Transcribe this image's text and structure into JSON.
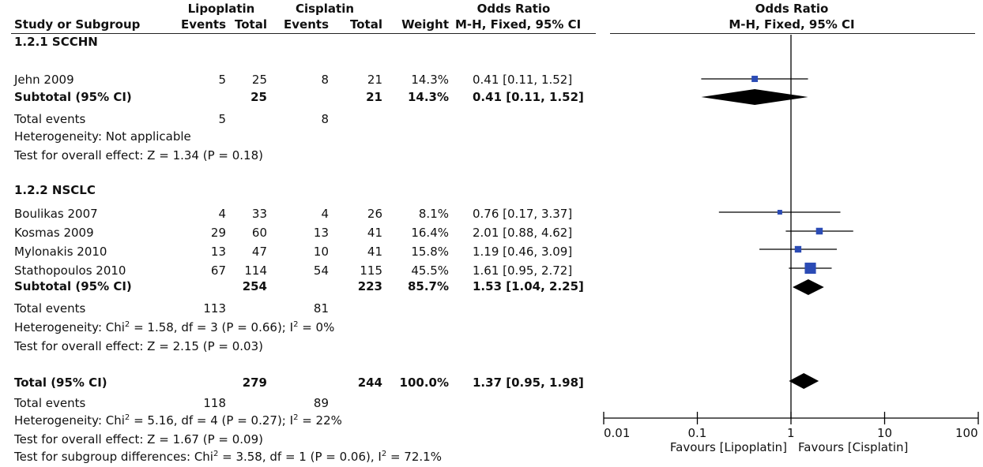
{
  "header": {
    "group1": "Lipoplatin",
    "group2": "Cisplatin",
    "or_title": "Odds Ratio",
    "study_label": "Study or Subgroup",
    "events": "Events",
    "total": "Total",
    "weight": "Weight",
    "method": "M-H, Fixed, 95% CI",
    "plot_title": "Odds Ratio",
    "plot_method": "M-H, Fixed, 95% CI"
  },
  "subgroups": [
    {
      "title": "1.2.1 SCCHN",
      "studies": [
        {
          "name": "Jehn 2009",
          "e1": "5",
          "t1": "25",
          "e2": "8",
          "t2": "21",
          "weight": "14.3%",
          "ci": "0.41 [0.11, 1.52]"
        }
      ],
      "subtotal": {
        "name": "Subtotal (95% CI)",
        "t1": "25",
        "t2": "21",
        "weight": "14.3%",
        "ci": "0.41 [0.11, 1.52]"
      },
      "total_events": {
        "label": "Total events",
        "e1": "5",
        "e2": "8"
      },
      "heterogeneity": "Heterogeneity: Not applicable",
      "overall": "Test for overall effect: Z = 1.34 (P = 0.18)"
    },
    {
      "title": "1.2.2 NSCLC",
      "studies": [
        {
          "name": "Boulikas 2007",
          "e1": "4",
          "t1": "33",
          "e2": "4",
          "t2": "26",
          "weight": "8.1%",
          "ci": "0.76 [0.17, 3.37]"
        },
        {
          "name": "Kosmas 2009",
          "e1": "29",
          "t1": "60",
          "e2": "13",
          "t2": "41",
          "weight": "16.4%",
          "ci": "2.01 [0.88, 4.62]"
        },
        {
          "name": "Mylonakis 2010",
          "e1": "13",
          "t1": "47",
          "e2": "10",
          "t2": "41",
          "weight": "15.8%",
          "ci": "1.19 [0.46, 3.09]"
        },
        {
          "name": "Stathopoulos 2010",
          "e1": "67",
          "t1": "114",
          "e2": "54",
          "t2": "115",
          "weight": "45.5%",
          "ci": "1.61 [0.95, 2.72]"
        }
      ],
      "subtotal": {
        "name": "Subtotal (95% CI)",
        "t1": "254",
        "t2": "223",
        "weight": "85.7%",
        "ci": "1.53 [1.04, 2.25]"
      },
      "total_events": {
        "label": "Total events",
        "e1": "113",
        "e2": "81"
      },
      "heterogeneity": {
        "pre": "Heterogeneity: Chi",
        "sup1": "2",
        "mid": " = 1.58, df = 3 (P = 0.66); I",
        "sup2": "2",
        "post": " = 0%"
      },
      "overall": "Test for overall effect: Z = 2.15 (P = 0.03)"
    }
  ],
  "total": {
    "name": "Total (95% CI)",
    "t1": "279",
    "t2": "244",
    "weight": "100.0%",
    "ci": "1.37 [0.95, 1.98]",
    "total_events": {
      "label": "Total events",
      "e1": "118",
      "e2": "89"
    },
    "heterogeneity": {
      "pre": "Heterogeneity: Chi",
      "sup1": "2",
      "mid": " = 5.16, df = 4 (P = 0.27); I",
      "sup2": "2",
      "post": " = 22%"
    },
    "overall": "Test for overall effect: Z = 1.67 (P = 0.09)",
    "subgroup_diff": {
      "pre": "Test for subgroup differences: Chi",
      "sup1": "2",
      "mid": " = 3.58, df = 1 (P = 0.06), I",
      "sup2": "2",
      "post": " = 72.1%"
    }
  },
  "axis": {
    "ticks": [
      "0.01",
      "0.1",
      "1",
      "10",
      "100"
    ],
    "favours_left": "Favours [Lipoplatin]",
    "favours_right": "Favours [Cisplatin]"
  },
  "chart_data": {
    "type": "forest",
    "title": "Odds Ratio",
    "subtitle": "M-H, Fixed, 95% CI",
    "x_scale": "log",
    "xlim": [
      0.01,
      100
    ],
    "reference_line": 1,
    "studies": [
      {
        "name": "Jehn 2009",
        "or": 0.41,
        "lo": 0.11,
        "hi": 1.52,
        "weight": 14.3
      },
      {
        "name": "Boulikas 2007",
        "or": 0.76,
        "lo": 0.17,
        "hi": 3.37,
        "weight": 8.1
      },
      {
        "name": "Kosmas 2009",
        "or": 2.01,
        "lo": 0.88,
        "hi": 4.62,
        "weight": 16.4
      },
      {
        "name": "Mylonakis 2010",
        "or": 1.19,
        "lo": 0.46,
        "hi": 3.09,
        "weight": 15.8
      },
      {
        "name": "Stathopoulos 2010",
        "or": 1.61,
        "lo": 0.95,
        "hi": 2.72,
        "weight": 45.5
      }
    ],
    "diamonds": [
      {
        "name": "Subtotal (95% CI)",
        "group": "1.2.1 SCCHN",
        "or": 0.41,
        "lo": 0.11,
        "hi": 1.52
      },
      {
        "name": "Subtotal (95% CI)",
        "group": "1.2.2 NSCLC",
        "or": 1.53,
        "lo": 1.04,
        "hi": 2.25
      },
      {
        "name": "Total (95% CI)",
        "or": 1.37,
        "lo": 0.95,
        "hi": 1.98
      }
    ],
    "colors": {
      "marker": "#2b4bb5",
      "diamond": "#000000",
      "line": "#000000"
    }
  }
}
